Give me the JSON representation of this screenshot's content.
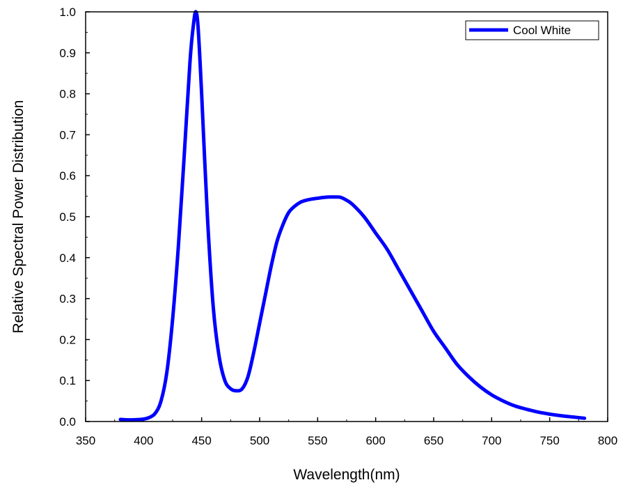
{
  "chart_data": {
    "type": "line",
    "xlabel": "Wavelength(nm)",
    "ylabel": "Relative Spectral Power Distribution",
    "xlim": [
      350,
      800
    ],
    "ylim": [
      0.0,
      1.0
    ],
    "xticks": [
      350,
      400,
      450,
      500,
      550,
      600,
      650,
      700,
      750,
      800
    ],
    "yticks": [
      0.0,
      0.1,
      0.2,
      0.3,
      0.4,
      0.5,
      0.6,
      0.7,
      0.8,
      0.9,
      1.0
    ],
    "xtick_labels": [
      "350",
      "400",
      "450",
      "500",
      "550",
      "600",
      "650",
      "700",
      "750",
      "800"
    ],
    "ytick_labels": [
      "0.0",
      "0.1",
      "0.2",
      "0.3",
      "0.4",
      "0.5",
      "0.6",
      "0.7",
      "0.8",
      "0.9",
      "1.0"
    ],
    "grid": false,
    "legend_position": "top-right",
    "series": [
      {
        "name": "Cool White",
        "color": "#0000ff",
        "x": [
          380,
          390,
          400,
          405,
          410,
          415,
          420,
          425,
          430,
          435,
          440,
          443,
          445,
          447,
          450,
          455,
          460,
          465,
          470,
          475,
          480,
          485,
          490,
          495,
          500,
          505,
          510,
          515,
          520,
          525,
          530,
          535,
          540,
          545,
          550,
          555,
          560,
          565,
          570,
          575,
          580,
          590,
          600,
          610,
          620,
          630,
          640,
          650,
          660,
          670,
          680,
          690,
          700,
          710,
          720,
          730,
          740,
          750,
          760,
          770,
          780
        ],
        "y": [
          0.005,
          0.004,
          0.006,
          0.01,
          0.02,
          0.05,
          0.12,
          0.25,
          0.43,
          0.65,
          0.88,
          0.97,
          1.0,
          0.96,
          0.8,
          0.5,
          0.28,
          0.16,
          0.1,
          0.08,
          0.075,
          0.08,
          0.11,
          0.17,
          0.24,
          0.31,
          0.38,
          0.44,
          0.48,
          0.51,
          0.525,
          0.535,
          0.54,
          0.543,
          0.545,
          0.547,
          0.548,
          0.548,
          0.547,
          0.54,
          0.53,
          0.5,
          0.46,
          0.42,
          0.37,
          0.32,
          0.27,
          0.22,
          0.18,
          0.14,
          0.11,
          0.085,
          0.065,
          0.05,
          0.038,
          0.03,
          0.023,
          0.018,
          0.014,
          0.011,
          0.008
        ]
      }
    ]
  }
}
